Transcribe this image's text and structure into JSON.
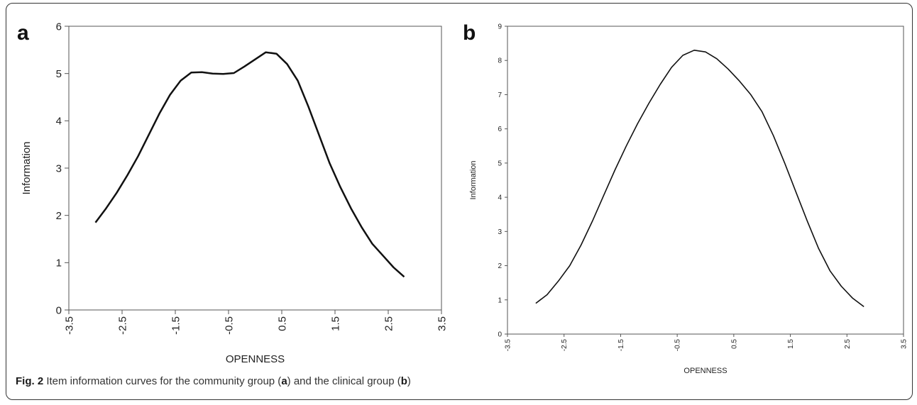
{
  "chart_data": [
    {
      "panel": "a",
      "type": "line",
      "xlabel": "OPENNESS",
      "ylabel": "Information",
      "xlim": [
        -3.5,
        3.5
      ],
      "ylim": [
        0,
        6
      ],
      "xticks": [
        "-3.5",
        "-2.5",
        "-1.5",
        "-0.5",
        "0.5",
        "1.5",
        "2.5",
        "3.5"
      ],
      "yticks": [
        "0",
        "1",
        "2",
        "3",
        "4",
        "5",
        "6"
      ],
      "x": [
        -3.0,
        -2.8,
        -2.6,
        -2.4,
        -2.2,
        -2.0,
        -1.8,
        -1.6,
        -1.4,
        -1.2,
        -1.0,
        -0.8,
        -0.6,
        -0.4,
        -0.2,
        0.0,
        0.2,
        0.4,
        0.6,
        0.8,
        1.0,
        1.2,
        1.4,
        1.6,
        1.8,
        2.0,
        2.2,
        2.4,
        2.6,
        2.8
      ],
      "y": [
        1.85,
        2.15,
        2.48,
        2.85,
        3.25,
        3.7,
        4.15,
        4.55,
        4.85,
        5.02,
        5.03,
        5.0,
        4.99,
        5.01,
        5.15,
        5.3,
        5.45,
        5.42,
        5.2,
        4.85,
        4.3,
        3.7,
        3.1,
        2.6,
        2.15,
        1.75,
        1.4,
        1.15,
        0.9,
        0.7
      ]
    },
    {
      "panel": "b",
      "type": "line",
      "xlabel": "OPENNESS",
      "ylabel": "Information",
      "xlim": [
        -3.5,
        3.5
      ],
      "ylim": [
        0,
        9
      ],
      "xticks": [
        "-3.5",
        "-2.5",
        "-1.5",
        "-0.5",
        "0.5",
        "1.5",
        "2.5",
        "3.5"
      ],
      "yticks": [
        "0",
        "1",
        "2",
        "3",
        "4",
        "5",
        "6",
        "7",
        "8",
        "9"
      ],
      "x": [
        -3.0,
        -2.8,
        -2.6,
        -2.4,
        -2.2,
        -2.0,
        -1.8,
        -1.6,
        -1.4,
        -1.2,
        -1.0,
        -0.8,
        -0.6,
        -0.4,
        -0.2,
        0.0,
        0.2,
        0.4,
        0.6,
        0.8,
        1.0,
        1.2,
        1.4,
        1.6,
        1.8,
        2.0,
        2.2,
        2.4,
        2.6,
        2.8
      ],
      "y": [
        0.9,
        1.15,
        1.55,
        2.0,
        2.6,
        3.3,
        4.05,
        4.8,
        5.5,
        6.15,
        6.75,
        7.3,
        7.8,
        8.15,
        8.3,
        8.25,
        8.05,
        7.75,
        7.4,
        7.0,
        6.5,
        5.8,
        5.0,
        4.15,
        3.3,
        2.5,
        1.85,
        1.4,
        1.05,
        0.8
      ]
    }
  ],
  "panels": {
    "a_label": "a",
    "b_label": "b"
  },
  "caption": {
    "prefix": "Fig. 2",
    "text1": " Item information curves for the community group (",
    "a": "a",
    "text2": ") and the clinical group (",
    "b": "b",
    "text3": ")"
  }
}
